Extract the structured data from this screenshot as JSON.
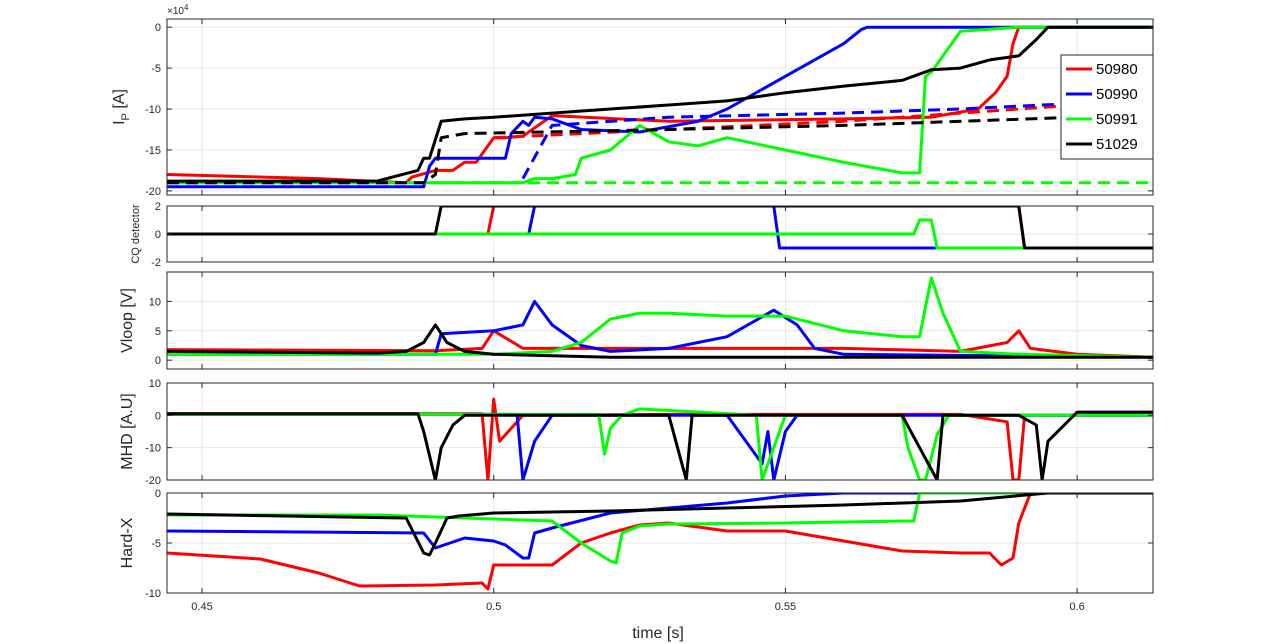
{
  "figure": {
    "xlabel": "time [s]",
    "xlim": [
      0.444,
      0.613
    ],
    "xticks": [
      0.45,
      0.5,
      0.55,
      0.6
    ],
    "xtick_labels": [
      "0.45",
      "0.5",
      "0.55",
      "0.6"
    ],
    "colors": {
      "50980": "#ff0000",
      "50990": "#0000ff",
      "50991": "#00ff00",
      "51029": "#000000"
    },
    "legend": {
      "placement": "top-right",
      "entries": [
        "50980",
        "50990",
        "50991",
        "51029"
      ]
    }
  },
  "chart_data": [
    {
      "type": "line",
      "ylabel_main": "I",
      "ylabel_sub": "P",
      "ylabel_unit": " [A]",
      "exponent_label": "×10",
      "exponent_power": "4",
      "ylim": [
        -20.5,
        1
      ],
      "yticks": [
        0,
        -5,
        -10,
        -15,
        -20
      ],
      "ytick_labels": [
        "0",
        "-5",
        "-10",
        "-15",
        "-20"
      ],
      "grid": true,
      "series": [
        {
          "name": "50980",
          "color": "#ff0000",
          "dashed": false,
          "x": [
            0.444,
            0.47,
            0.485,
            0.486,
            0.49,
            0.493,
            0.495,
            0.497,
            0.499,
            0.5,
            0.502,
            0.505,
            0.51,
            0.53,
            0.56,
            0.575,
            0.583,
            0.586,
            0.588,
            0.589,
            0.59,
            0.6,
            0.613
          ],
          "y": [
            -18,
            -18.5,
            -19,
            -18.3,
            -17.5,
            -17.5,
            -16.5,
            -16.5,
            -14.5,
            -13.5,
            -13.5,
            -13.3,
            -10.8,
            -11.5,
            -11.2,
            -11,
            -10,
            -8,
            -6,
            -2,
            0,
            0,
            0
          ]
        },
        {
          "name": "50980",
          "color": "#ff0000",
          "dashed": true,
          "x": [
            0.5,
            0.53,
            0.56,
            0.59,
            0.6
          ],
          "y": [
            -13.5,
            -12.5,
            -11.5,
            -10,
            -9.5
          ]
        },
        {
          "name": "50990",
          "color": "#0000ff",
          "dashed": false,
          "x": [
            0.444,
            0.488,
            0.489,
            0.49,
            0.502,
            0.503,
            0.505,
            0.506,
            0.507,
            0.51,
            0.515,
            0.525,
            0.535,
            0.54,
            0.545,
            0.55,
            0.555,
            0.56,
            0.563,
            0.564,
            0.566,
            0.57,
            0.613
          ],
          "y": [
            -19.5,
            -19.5,
            -17,
            -16,
            -16,
            -13,
            -11.5,
            -12,
            -11,
            -11.2,
            -12.5,
            -12.8,
            -11.5,
            -10,
            -8,
            -6,
            -4,
            -2,
            -0.3,
            0,
            0,
            0,
            0
          ]
        },
        {
          "name": "50990",
          "color": "#0000ff",
          "dashed": true,
          "x": [
            0.505,
            0.51,
            0.53,
            0.56,
            0.58,
            0.6,
            0.613
          ],
          "y": [
            -18.5,
            -12,
            -11,
            -10.5,
            -10,
            -9.3,
            -9
          ]
        },
        {
          "name": "50991",
          "color": "#00ff00",
          "dashed": false,
          "x": [
            0.444,
            0.48,
            0.505,
            0.507,
            0.51,
            0.514,
            0.515,
            0.52,
            0.525,
            0.53,
            0.535,
            0.54,
            0.55,
            0.56,
            0.57,
            0.573,
            0.574,
            0.575,
            0.58,
            0.59,
            0.6,
            0.613
          ],
          "y": [
            -19,
            -19,
            -19,
            -18.5,
            -18.5,
            -18,
            -16,
            -15,
            -12,
            -14,
            -14.5,
            -13.5,
            -15,
            -16.5,
            -17.8,
            -17.8,
            -6,
            -5.5,
            -0.5,
            0,
            0,
            0
          ]
        },
        {
          "name": "50991",
          "color": "#00ff00",
          "dashed": true,
          "x": [
            0.444,
            0.613
          ],
          "y": [
            -19,
            -19
          ]
        },
        {
          "name": "51029",
          "color": "#000000",
          "dashed": false,
          "x": [
            0.444,
            0.48,
            0.487,
            0.488,
            0.489,
            0.491,
            0.495,
            0.5,
            0.51,
            0.52,
            0.53,
            0.54,
            0.55,
            0.56,
            0.57,
            0.575,
            0.58,
            0.585,
            0.59,
            0.593,
            0.595,
            0.6,
            0.613
          ],
          "y": [
            -18.8,
            -18.8,
            -17.5,
            -16,
            -16,
            -11.5,
            -11.2,
            -11,
            -10.5,
            -10,
            -9.5,
            -9,
            -8,
            -7.2,
            -6.5,
            -5.2,
            -5,
            -4,
            -3.5,
            -1.5,
            0,
            0,
            0
          ]
        },
        {
          "name": "51029",
          "color": "#000000",
          "dashed": true,
          "x": [
            0.444,
            0.488,
            0.49,
            0.491,
            0.495,
            0.53,
            0.56,
            0.6,
            0.613
          ],
          "y": [
            -19,
            -19,
            -18,
            -13.5,
            -13,
            -12.5,
            -12,
            -11,
            -10.5
          ]
        }
      ]
    },
    {
      "type": "line",
      "ylabel": "CQ detector",
      "ylim": [
        -2,
        2
      ],
      "yticks": [
        2,
        0,
        -2
      ],
      "ytick_labels": [
        "2",
        "0",
        "-2"
      ],
      "grid": true,
      "series": [
        {
          "name": "50980",
          "color": "#ff0000",
          "x": [
            0.444,
            0.499,
            0.5,
            0.59,
            0.591,
            0.613
          ],
          "y": [
            0,
            0,
            2,
            2,
            -1,
            -1
          ]
        },
        {
          "name": "50990",
          "color": "#0000ff",
          "x": [
            0.444,
            0.506,
            0.507,
            0.548,
            0.549,
            0.613
          ],
          "y": [
            0,
            0,
            2,
            2,
            -1,
            -1
          ]
        },
        {
          "name": "50991",
          "color": "#00ff00",
          "x": [
            0.444,
            0.572,
            0.573,
            0.575,
            0.576,
            0.59,
            0.591,
            0.613
          ],
          "y": [
            0,
            0,
            1,
            1,
            -1,
            -1,
            -1,
            -1
          ]
        },
        {
          "name": "51029",
          "color": "#000000",
          "x": [
            0.444,
            0.49,
            0.491,
            0.59,
            0.591,
            0.613
          ],
          "y": [
            0,
            0,
            2,
            2,
            -1,
            -1
          ]
        }
      ]
    },
    {
      "type": "line",
      "ylabel": "Vloop [V]",
      "ylim": [
        -1.5,
        15
      ],
      "yticks": [
        0,
        5,
        10
      ],
      "ytick_labels": [
        "0",
        "5",
        "10"
      ],
      "grid": true,
      "series": [
        {
          "name": "50980",
          "color": "#ff0000",
          "x": [
            0.444,
            0.49,
            0.498,
            0.5,
            0.505,
            0.53,
            0.56,
            0.58,
            0.588,
            0.59,
            0.592,
            0.6,
            0.613
          ],
          "y": [
            1.8,
            1.6,
            2,
            5,
            2,
            2,
            2,
            1.5,
            3,
            5,
            2,
            1,
            0.5
          ]
        },
        {
          "name": "50990",
          "color": "#0000ff",
          "x": [
            0.444,
            0.49,
            0.491,
            0.5,
            0.505,
            0.507,
            0.51,
            0.515,
            0.52,
            0.53,
            0.54,
            0.548,
            0.552,
            0.555,
            0.56,
            0.613
          ],
          "y": [
            1,
            1,
            4.5,
            5,
            6,
            10,
            6,
            2.5,
            1.5,
            2,
            4,
            8.5,
            6,
            2,
            1,
            0.5
          ]
        },
        {
          "name": "50991",
          "color": "#00ff00",
          "x": [
            0.444,
            0.5,
            0.51,
            0.515,
            0.52,
            0.525,
            0.53,
            0.54,
            0.55,
            0.56,
            0.57,
            0.573,
            0.575,
            0.577,
            0.58,
            0.59,
            0.6,
            0.613
          ],
          "y": [
            1,
            1,
            1.5,
            3,
            7,
            8,
            8,
            7.5,
            7.5,
            5,
            4,
            4,
            14,
            8,
            1.5,
            1,
            0.8,
            0.5
          ]
        },
        {
          "name": "51029",
          "color": "#000000",
          "x": [
            0.444,
            0.48,
            0.485,
            0.488,
            0.49,
            0.492,
            0.495,
            0.5,
            0.52,
            0.54,
            0.56,
            0.6,
            0.613
          ],
          "y": [
            1.5,
            1.2,
            1.5,
            3,
            6,
            3,
            1.5,
            1,
            0.5,
            0.5,
            0.5,
            0.5,
            0.5
          ]
        }
      ]
    },
    {
      "type": "line",
      "ylabel": "MHD [A.U]",
      "ylim": [
        -20,
        10
      ],
      "yticks": [
        10,
        0,
        -10,
        -20
      ],
      "ytick_labels": [
        "10",
        "0",
        "-10",
        "-20"
      ],
      "grid": true,
      "series": [
        {
          "name": "50980",
          "color": "#ff0000",
          "x": [
            0.444,
            0.498,
            0.499,
            0.5,
            0.501,
            0.505,
            0.508,
            0.53,
            0.58,
            0.588,
            0.589,
            0.59,
            0.591,
            0.6,
            0.613
          ],
          "y": [
            0.5,
            0.5,
            -20,
            5,
            -8,
            0,
            0,
            0.3,
            0.3,
            -2,
            -20,
            -20,
            0,
            0,
            0
          ]
        },
        {
          "name": "50990",
          "color": "#0000ff",
          "x": [
            0.444,
            0.504,
            0.505,
            0.507,
            0.51,
            0.54,
            0.546,
            0.547,
            0.548,
            0.55,
            0.552,
            0.613
          ],
          "y": [
            0.3,
            0.3,
            -20,
            -8,
            0,
            0,
            -15,
            -5,
            -20,
            -5,
            0,
            0
          ]
        },
        {
          "name": "50991",
          "color": "#00ff00",
          "x": [
            0.444,
            0.518,
            0.519,
            0.52,
            0.522,
            0.525,
            0.545,
            0.546,
            0.55,
            0.57,
            0.571,
            0.573,
            0.574,
            0.576,
            0.578,
            0.613
          ],
          "y": [
            0.3,
            0.3,
            -12,
            -4,
            0,
            2,
            0,
            -20,
            0,
            0,
            -10,
            -20,
            -20,
            -6,
            0,
            0
          ]
        },
        {
          "name": "51029",
          "color": "#000000",
          "x": [
            0.444,
            0.487,
            0.488,
            0.49,
            0.491,
            0.493,
            0.495,
            0.53,
            0.533,
            0.534,
            0.56,
            0.57,
            0.576,
            0.577,
            0.59,
            0.593,
            0.594,
            0.595,
            0.6,
            0.613
          ],
          "y": [
            0.5,
            0.5,
            -5,
            -20,
            -10,
            -3,
            0,
            0,
            -20,
            0,
            0,
            0,
            -20,
            0,
            0,
            -3,
            -20,
            -8,
            1,
            1
          ]
        }
      ]
    },
    {
      "type": "line",
      "ylabel": "Hard-X",
      "ylim": [
        -10,
        0
      ],
      "yticks": [
        0,
        -5,
        -10
      ],
      "ytick_labels": [
        "0",
        "-5",
        "-10"
      ],
      "grid": true,
      "series": [
        {
          "name": "50980",
          "color": "#ff0000",
          "x": [
            0.444,
            0.46,
            0.47,
            0.477,
            0.49,
            0.498,
            0.499,
            0.5,
            0.505,
            0.51,
            0.515,
            0.52,
            0.525,
            0.53,
            0.54,
            0.55,
            0.56,
            0.57,
            0.58,
            0.585,
            0.587,
            0.589,
            0.59,
            0.592,
            0.613
          ],
          "y": [
            -6,
            -6.6,
            -8,
            -9.3,
            -9.2,
            -9,
            -9.6,
            -7.2,
            -7.2,
            -7.2,
            -5,
            -4,
            -3.2,
            -3,
            -3.8,
            -3.8,
            -4.8,
            -5.8,
            -6,
            -6,
            -7.2,
            -6.5,
            -3,
            0,
            0
          ]
        },
        {
          "name": "50990",
          "color": "#0000ff",
          "x": [
            0.444,
            0.488,
            0.49,
            0.495,
            0.5,
            0.502,
            0.505,
            0.506,
            0.507,
            0.51,
            0.52,
            0.54,
            0.55,
            0.56,
            0.613
          ],
          "y": [
            -3.8,
            -4,
            -5.5,
            -4.5,
            -4.8,
            -5.2,
            -6.5,
            -6.5,
            -4,
            -3.5,
            -2,
            -1,
            -0.3,
            0,
            0
          ]
        },
        {
          "name": "50991",
          "color": "#00ff00",
          "x": [
            0.444,
            0.48,
            0.5,
            0.51,
            0.515,
            0.52,
            0.521,
            0.522,
            0.525,
            0.53,
            0.55,
            0.57,
            0.572,
            0.573,
            0.6,
            0.613
          ],
          "y": [
            -2.2,
            -2.2,
            -2.6,
            -2.8,
            -5,
            -6.8,
            -7,
            -4,
            -3.3,
            -3.1,
            -3,
            -2.8,
            -2.8,
            0,
            0,
            0
          ]
        },
        {
          "name": "51029",
          "color": "#000000",
          "x": [
            0.444,
            0.485,
            0.488,
            0.489,
            0.49,
            0.492,
            0.494,
            0.5,
            0.52,
            0.54,
            0.56,
            0.58,
            0.595,
            0.613
          ],
          "y": [
            -2.1,
            -2.5,
            -6,
            -6.2,
            -5,
            -2.5,
            -2.3,
            -2,
            -1.8,
            -1.5,
            -1.2,
            -0.8,
            0,
            0
          ]
        }
      ]
    }
  ]
}
